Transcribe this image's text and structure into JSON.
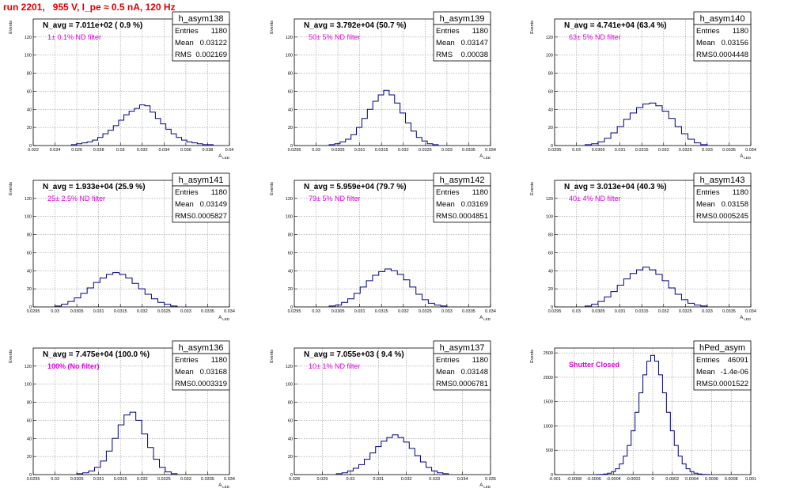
{
  "header": {
    "title": "run 2201,   955 V, I_pe ≈ 0.5 nA, 120 Hz",
    "color": "#e00000"
  },
  "colors": {
    "hist": "#000080",
    "filter_text": "#e000e0",
    "grid": "#9a9a9a"
  },
  "stat_labels": {
    "entries": "Entries",
    "mean": "Mean",
    "rms": "RMS"
  },
  "chart_data": [
    {
      "type": "histogram",
      "name": "h_asym138",
      "navg": "N_avg = 7.011e+02 ( 0.9 %)",
      "filter": "1± 0.1% ND filter",
      "stats": {
        "entries": "1180",
        "mean": "0.03122",
        "rms": "0.002169"
      },
      "ylabel": "Events",
      "xlabel": "A_LED",
      "xlim": [
        0.022,
        0.04
      ],
      "ylim": [
        0,
        140
      ],
      "xticks": [
        "0.022",
        "0.024",
        "0.026",
        "0.028",
        "0.03",
        "0.032",
        "0.034",
        "0.036",
        "0.038",
        "0.04"
      ],
      "yticks": [
        "0",
        "20",
        "40",
        "60",
        "80",
        "100",
        "120"
      ],
      "y_values": [
        1,
        2,
        3,
        4,
        6,
        9,
        13,
        17,
        22,
        28,
        34,
        38,
        41,
        45,
        44,
        37,
        30,
        24,
        18,
        13,
        9,
        6,
        4,
        3,
        2,
        1,
        1
      ],
      "x_range_data": [
        0.0255,
        0.0385
      ],
      "grid": true
    },
    {
      "type": "histogram",
      "name": "h_asym139",
      "navg": "N_avg = 3.792e+04 (50.7 %)",
      "filter": "50± 5% ND filter",
      "stats": {
        "entries": "1180",
        "mean": "0.03147",
        "rms": "0.00038"
      },
      "ylabel": "Events",
      "xlabel": "A_LED",
      "xlim": [
        0.0295,
        0.034
      ],
      "ylim": [
        0,
        140
      ],
      "xticks": [
        "0.0295",
        "0.03",
        "0.0305",
        "0.031",
        "0.0315",
        "0.032",
        "0.0325",
        "0.033",
        "0.0335",
        "0.034"
      ],
      "yticks": [
        "0",
        "20",
        "40",
        "60",
        "80",
        "100",
        "120"
      ],
      "y_values": [
        1,
        2,
        4,
        7,
        12,
        20,
        30,
        40,
        49,
        56,
        61,
        56,
        47,
        36,
        25,
        16,
        9,
        5,
        2,
        1
      ],
      "x_range_data": [
        0.0303,
        0.0328
      ],
      "grid": true
    },
    {
      "type": "histogram",
      "name": "h_asym140",
      "navg": "N_avg = 4.741e+04 (63.4 %)",
      "filter": "63± 5% ND filter",
      "stats": {
        "entries": "1180",
        "mean": "0.03156",
        "rms": "0.0004448"
      },
      "ylabel": "Events",
      "xlabel": "A_LED",
      "xlim": [
        0.0295,
        0.034
      ],
      "ylim": [
        0,
        140
      ],
      "xticks": [
        "0.0295",
        "0.03",
        "0.0305",
        "0.031",
        "0.0315",
        "0.032",
        "0.0325",
        "0.033",
        "0.0335",
        "0.034"
      ],
      "yticks": [
        "0",
        "20",
        "40",
        "60",
        "80",
        "100",
        "120"
      ],
      "y_values": [
        1,
        2,
        4,
        8,
        14,
        21,
        29,
        36,
        42,
        46,
        47,
        44,
        38,
        30,
        21,
        13,
        7,
        3,
        1
      ],
      "x_range_data": [
        0.0302,
        0.033
      ],
      "grid": true
    },
    {
      "type": "histogram",
      "name": "h_asym141",
      "navg": "N_avg = 1.933e+04 (25.9 %)",
      "filter": "25± 2.5% ND filter",
      "stats": {
        "entries": "1180",
        "mean": "0.03149",
        "rms": "0.0005827"
      },
      "ylabel": "Events",
      "xlabel": "A_LED",
      "xlim": [
        0.0295,
        0.034
      ],
      "ylim": [
        0,
        140
      ],
      "xticks": [
        "0.0295",
        "0.03",
        "0.0305",
        "0.031",
        "0.0315",
        "0.032",
        "0.0325",
        "0.033",
        "0.0335",
        "0.034"
      ],
      "yticks": [
        "0",
        "20",
        "40",
        "60",
        "80",
        "100",
        "120"
      ],
      "y_values": [
        1,
        3,
        6,
        10,
        15,
        21,
        27,
        32,
        36,
        38,
        36,
        32,
        26,
        20,
        14,
        9,
        5,
        3,
        1
      ],
      "x_range_data": [
        0.03,
        0.0328
      ],
      "grid": true
    },
    {
      "type": "histogram",
      "name": "h_asym142",
      "navg": "N_avg = 5.959e+04 (79.7 %)",
      "filter": "79± 5% ND filter",
      "stats": {
        "entries": "1180",
        "mean": "0.03169",
        "rms": "0.0004851"
      },
      "ylabel": "Events",
      "xlabel": "A_LED",
      "xlim": [
        0.0295,
        0.034
      ],
      "ylim": [
        0,
        140
      ],
      "xticks": [
        "0.0295",
        "0.03",
        "0.0305",
        "0.031",
        "0.0315",
        "0.032",
        "0.0325",
        "0.033",
        "0.0335",
        "0.034"
      ],
      "yticks": [
        "0",
        "20",
        "40",
        "60",
        "80",
        "100",
        "120"
      ],
      "y_values": [
        1,
        2,
        5,
        9,
        15,
        22,
        29,
        35,
        39,
        42,
        40,
        36,
        30,
        22,
        14,
        8,
        4,
        2,
        1
      ],
      "x_range_data": [
        0.0303,
        0.033
      ],
      "grid": true
    },
    {
      "type": "histogram",
      "name": "h_asym143",
      "navg": "N_avg = 3.013e+04 (40.3 %)",
      "filter": "40± 4% ND filter",
      "stats": {
        "entries": "1180",
        "mean": "0.03158",
        "rms": "0.0005245"
      },
      "ylabel": "Events",
      "xlabel": "A_LED",
      "xlim": [
        0.0295,
        0.034
      ],
      "ylim": [
        0,
        140
      ],
      "xticks": [
        "0.0295",
        "0.03",
        "0.0305",
        "0.031",
        "0.0315",
        "0.032",
        "0.0325",
        "0.033",
        "0.0335",
        "0.034"
      ],
      "yticks": [
        "0",
        "20",
        "40",
        "60",
        "80",
        "100",
        "120"
      ],
      "y_values": [
        1,
        3,
        6,
        11,
        17,
        24,
        31,
        37,
        41,
        44,
        41,
        36,
        29,
        21,
        14,
        8,
        4,
        2,
        1
      ],
      "x_range_data": [
        0.0302,
        0.033
      ],
      "grid": true
    },
    {
      "type": "histogram",
      "name": "h_asym136",
      "navg": "N_avg = 7.475e+04 (100.0 %)",
      "filter": "100% (No filter)",
      "filter_bold": true,
      "stats": {
        "entries": "1180",
        "mean": "0.03168",
        "rms": "0.0003319"
      },
      "ylabel": "Events",
      "xlabel": "A_LED",
      "xlim": [
        0.0295,
        0.034
      ],
      "ylim": [
        0,
        140
      ],
      "xticks": [
        "0.0295",
        "0.03",
        "0.0305",
        "0.031",
        "0.0315",
        "0.032",
        "0.0325",
        "0.033",
        "0.0335",
        "0.034"
      ],
      "yticks": [
        "0",
        "20",
        "40",
        "60",
        "80",
        "100",
        "120"
      ],
      "y_values": [
        1,
        2,
        4,
        8,
        15,
        26,
        40,
        55,
        66,
        69,
        60,
        45,
        30,
        17,
        8,
        3,
        1
      ],
      "x_range_data": [
        0.0305,
        0.0328
      ],
      "grid": true
    },
    {
      "type": "histogram",
      "name": "h_asym137",
      "navg": "N_avg = 7.055e+03 ( 9.4 %)",
      "filter": "10± 1% ND filter",
      "stats": {
        "entries": "1180",
        "mean": "0.03148",
        "rms": "0.0006781"
      },
      "ylabel": "Events",
      "xlabel": "A_LED",
      "xlim": [
        0.028,
        0.035
      ],
      "ylim": [
        0,
        140
      ],
      "xticks": [
        "0.028",
        "0.029",
        "0.03",
        "0.031",
        "0.032",
        "0.033",
        "0.034",
        "0.035"
      ],
      "yticks": [
        "0",
        "20",
        "40",
        "60",
        "80",
        "100",
        "120"
      ],
      "y_values": [
        1,
        2,
        4,
        7,
        11,
        17,
        24,
        31,
        37,
        41,
        44,
        41,
        36,
        29,
        21,
        14,
        8,
        4,
        2,
        1
      ],
      "x_range_data": [
        0.0295,
        0.0335
      ],
      "grid": true
    },
    {
      "type": "histogram",
      "name": "hPed_asym",
      "navg": "",
      "filter": "Shutter Closed",
      "filter_bold": true,
      "stats": {
        "entries": "46091",
        "mean": "-1.4e-06",
        "rms": "0.0001522"
      },
      "ylabel": "Events",
      "xlabel": "",
      "xlim": [
        -0.001,
        0.001
      ],
      "ylim": [
        0,
        2600
      ],
      "xticks": [
        "-0.001",
        "-0.0008",
        "-0.0006",
        "-0.0004",
        "-0.0002",
        "0",
        "0.0002",
        "0.0004",
        "0.0006",
        "0.0008",
        "0.001"
      ],
      "yticks": [
        "0",
        "500",
        "1000",
        "1500",
        "2000",
        "2500"
      ],
      "y_values": [
        2,
        5,
        12,
        28,
        60,
        120,
        220,
        380,
        600,
        900,
        1280,
        1680,
        2050,
        2330,
        2450,
        2330,
        2050,
        1680,
        1280,
        900,
        600,
        380,
        220,
        120,
        60,
        28,
        12,
        5,
        2
      ],
      "x_range_data": [
        -0.00058,
        0.00058
      ],
      "grid": true
    }
  ]
}
